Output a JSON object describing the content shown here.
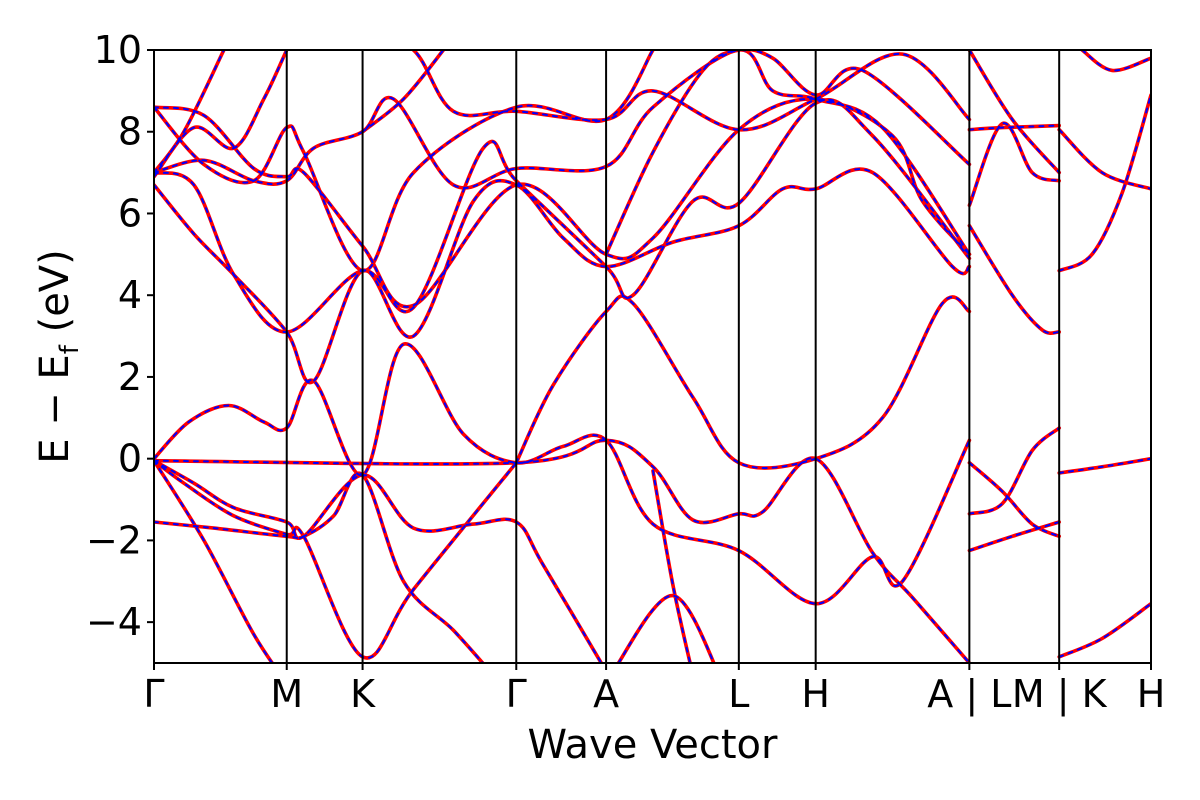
{
  "chart_data": {
    "type": "line",
    "title": "",
    "xlabel": "Wave Vector",
    "ylabel": "E − E_f (eV)",
    "ylabel_main": "E − E",
    "ylabel_sub": "f",
    "ylabel_tail": " (eV)",
    "ylim": [
      -5,
      10
    ],
    "xlim": [
      0,
      9.99
    ],
    "yticks": [
      -4,
      -2,
      0,
      2,
      4,
      6,
      8,
      10
    ],
    "ytick_labels": [
      "−4",
      "−2",
      "0",
      "2",
      "4",
      "6",
      "8",
      "10"
    ],
    "kpoints": [
      {
        "x": 0.0,
        "label": "Γ"
      },
      {
        "x": 1.33,
        "label": "M"
      },
      {
        "x": 2.09,
        "label": "K"
      },
      {
        "x": 3.63,
        "label": "Γ"
      },
      {
        "x": 4.53,
        "label": "A"
      },
      {
        "x": 5.86,
        "label": "L"
      },
      {
        "x": 6.63,
        "label": "H"
      },
      {
        "x": 8.17,
        "label": "A | L"
      },
      {
        "x": 9.07,
        "label": "M | K"
      },
      {
        "x": 9.99,
        "label": "H"
      }
    ],
    "series_styles": [
      {
        "color": "#ff0000",
        "dash": "none",
        "width": 3.6
      },
      {
        "color": "#0000ff",
        "dash": "4 6",
        "width": 2.0
      }
    ],
    "bands": [
      [
        [
          0,
          -0.05
        ],
        [
          0.4,
          -0.6
        ],
        [
          0.8,
          -1.2
        ],
        [
          1.33,
          -1.55
        ],
        [
          1.5,
          -1.9
        ],
        [
          2.09,
          -0.4
        ],
        [
          2.6,
          -1.7
        ],
        [
          3.2,
          -1.6
        ],
        [
          3.63,
          -1.55
        ],
        [
          3.9,
          -2.6
        ],
        [
          4.53,
          -5.2
        ]
      ],
      [
        [
          0,
          -0.05
        ],
        [
          0.5,
          -2.0
        ],
        [
          1.0,
          -4.3
        ],
        [
          1.33,
          -5.5
        ]
      ],
      [
        [
          0,
          -0.05
        ],
        [
          0.3,
          -0.6
        ],
        [
          0.8,
          -1.4
        ],
        [
          1.33,
          -1.85
        ],
        [
          1.5,
          -1.9
        ],
        [
          2.09,
          -4.85
        ],
        [
          2.6,
          -3.2
        ],
        [
          3.63,
          -0.1
        ]
      ],
      [
        [
          0,
          -1.55
        ],
        [
          0.6,
          -1.7
        ],
        [
          1.33,
          -1.9
        ],
        [
          1.5,
          -1.9
        ],
        [
          1.8,
          -1.4
        ],
        [
          2.09,
          -0.4
        ],
        [
          2.5,
          -3.0
        ],
        [
          3.0,
          -4.2
        ],
        [
          3.4,
          -5.3
        ]
      ],
      [
        [
          0,
          0.0
        ],
        [
          0.35,
          0.9
        ],
        [
          0.75,
          1.3
        ],
        [
          1.1,
          0.9
        ],
        [
          1.33,
          0.75
        ],
        [
          1.6,
          1.9
        ],
        [
          2.09,
          -0.4
        ],
        [
          2.5,
          2.8
        ],
        [
          3.1,
          0.6
        ],
        [
          3.63,
          -0.1
        ],
        [
          4.1,
          0.3
        ],
        [
          4.53,
          0.45
        ],
        [
          5.0,
          -1.6
        ],
        [
          5.86,
          -2.25
        ],
        [
          6.63,
          -3.55
        ],
        [
          7.2,
          -2.4
        ],
        [
          7.5,
          -3.0
        ],
        [
          8.17,
          0.45
        ]
      ],
      [
        [
          0,
          -0.05
        ],
        [
          3.63,
          -0.1
        ],
        [
          4.53,
          0.45
        ],
        [
          5.0,
          -0.2
        ],
        [
          5.4,
          -1.5
        ],
        [
          5.86,
          -1.35
        ],
        [
          6.1,
          -1.3
        ],
        [
          6.63,
          0.0
        ],
        [
          7.2,
          -2.3
        ],
        [
          7.6,
          -3.4
        ],
        [
          8.17,
          -5.0
        ]
      ],
      [
        [
          3.63,
          -0.1
        ],
        [
          4.0,
          1.8
        ],
        [
          4.53,
          3.6
        ],
        [
          4.8,
          3.8
        ],
        [
          5.4,
          1.5
        ],
        [
          5.86,
          -0.1
        ],
        [
          6.63,
          0.0
        ],
        [
          7.3,
          1.0
        ],
        [
          7.9,
          3.8
        ],
        [
          8.17,
          3.6
        ]
      ],
      [
        [
          4.6,
          -5.2
        ],
        [
          5.2,
          -3.35
        ],
        [
          5.7,
          -5.5
        ]
      ],
      [
        [
          5.0,
          -0.3
        ],
        [
          5.2,
          -3.1
        ],
        [
          5.4,
          -5.3
        ]
      ],
      [
        [
          0,
          6.7
        ],
        [
          0.4,
          5.5
        ],
        [
          0.8,
          4.5
        ],
        [
          1.33,
          3.1
        ],
        [
          1.6,
          1.9
        ],
        [
          2.09,
          4.6
        ],
        [
          2.6,
          3.0
        ],
        [
          3.2,
          6.3
        ],
        [
          3.63,
          6.7
        ],
        [
          4.1,
          5.4
        ],
        [
          4.53,
          4.7
        ],
        [
          5.2,
          5.3
        ],
        [
          5.86,
          5.7
        ],
        [
          6.3,
          6.6
        ],
        [
          6.63,
          6.6
        ],
        [
          7.2,
          7.0
        ],
        [
          8.0,
          4.7
        ],
        [
          8.17,
          4.7
        ]
      ],
      [
        [
          0,
          7.0
        ],
        [
          0.4,
          6.7
        ],
        [
          0.8,
          4.5
        ],
        [
          1.33,
          3.1
        ],
        [
          2.09,
          4.6
        ],
        [
          2.6,
          3.7
        ],
        [
          3.3,
          7.6
        ],
        [
          3.63,
          6.8
        ],
        [
          4.53,
          4.7
        ],
        [
          4.8,
          4.0
        ],
        [
          5.4,
          6.3
        ],
        [
          5.86,
          6.25
        ],
        [
          6.63,
          8.7
        ],
        [
          7.2,
          7.9
        ],
        [
          8.17,
          4.9
        ]
      ],
      [
        [
          0,
          7.0
        ],
        [
          0.5,
          7.3
        ],
        [
          1.0,
          6.8
        ],
        [
          1.33,
          6.8
        ],
        [
          1.6,
          7.6
        ],
        [
          2.09,
          8.0
        ],
        [
          2.4,
          8.8
        ],
        [
          3.0,
          6.7
        ],
        [
          3.63,
          7.1
        ],
        [
          4.53,
          7.15
        ],
        [
          5.0,
          8.6
        ],
        [
          5.86,
          10.0
        ],
        [
          6.2,
          9.0
        ],
        [
          6.63,
          8.8
        ],
        [
          7.3,
          8.1
        ],
        [
          8.17,
          5.0
        ]
      ],
      [
        [
          0,
          8.6
        ],
        [
          0.5,
          8.4
        ],
        [
          1.0,
          7.1
        ],
        [
          1.33,
          6.9
        ],
        [
          1.5,
          7.0
        ],
        [
          2.09,
          5.2
        ],
        [
          2.6,
          3.75
        ],
        [
          3.63,
          6.7
        ],
        [
          4.53,
          5.0
        ],
        [
          5.0,
          5.4
        ],
        [
          5.86,
          8.05
        ],
        [
          6.63,
          8.8
        ],
        [
          7.4,
          7.9
        ],
        [
          7.7,
          6.3
        ],
        [
          8.17,
          5.0
        ]
      ],
      [
        [
          0,
          8.6
        ],
        [
          0.5,
          7.2
        ],
        [
          1.0,
          6.8
        ],
        [
          1.33,
          8.1
        ],
        [
          1.5,
          7.5
        ],
        [
          2.09,
          4.6
        ],
        [
          2.6,
          7.0
        ],
        [
          3.63,
          8.6
        ],
        [
          4.53,
          8.3
        ],
        [
          5.0,
          10.0
        ]
      ],
      [
        [
          0,
          7.0
        ],
        [
          0.3,
          8.0
        ],
        [
          0.7,
          10.0
        ]
      ],
      [
        [
          0,
          6.9
        ],
        [
          0.4,
          8.1
        ],
        [
          0.8,
          7.6
        ],
        [
          1.1,
          8.8
        ],
        [
          1.33,
          10.0
        ]
      ],
      [
        [
          2.09,
          8.0
        ],
        [
          2.5,
          8.8
        ],
        [
          2.9,
          10.0
        ]
      ],
      [
        [
          2.09,
          10.5
        ],
        [
          2.6,
          10.0
        ],
        [
          3.0,
          8.5
        ],
        [
          3.63,
          8.5
        ],
        [
          4.53,
          8.3
        ],
        [
          5.0,
          9.0
        ],
        [
          5.86,
          8.05
        ],
        [
          6.63,
          8.8
        ],
        [
          7.5,
          9.9
        ],
        [
          8.17,
          8.3
        ]
      ],
      [
        [
          4.53,
          5.0
        ],
        [
          5.0,
          7.5
        ],
        [
          5.5,
          9.5
        ],
        [
          5.86,
          10.0
        ],
        [
          6.2,
          9.8
        ],
        [
          6.63,
          8.9
        ],
        [
          7.1,
          9.5
        ],
        [
          8.17,
          7.2
        ]
      ],
      [
        [
          8.17,
          6.2
        ],
        [
          8.5,
          8.2
        ],
        [
          8.8,
          7.0
        ],
        [
          9.07,
          6.8
        ]
      ],
      [
        [
          8.17,
          8.05
        ],
        [
          8.5,
          8.1
        ],
        [
          9.07,
          8.15
        ]
      ],
      [
        [
          8.17,
          5.7
        ],
        [
          8.6,
          4.0
        ],
        [
          8.9,
          3.15
        ],
        [
          9.07,
          3.1
        ]
      ],
      [
        [
          8.17,
          10.0
        ],
        [
          8.6,
          8.3
        ],
        [
          9.07,
          7.0
        ]
      ],
      [
        [
          8.17,
          -0.1
        ],
        [
          8.5,
          -0.8
        ],
        [
          8.8,
          -1.6
        ],
        [
          9.07,
          -1.9
        ]
      ],
      [
        [
          8.17,
          -1.35
        ],
        [
          8.5,
          -1.1
        ],
        [
          8.8,
          0.2
        ],
        [
          9.07,
          0.75
        ]
      ],
      [
        [
          8.17,
          -2.25
        ],
        [
          8.6,
          -1.9
        ],
        [
          9.07,
          -1.55
        ]
      ],
      [
        [
          9.07,
          4.6
        ],
        [
          9.4,
          5.0
        ],
        [
          9.7,
          6.5
        ],
        [
          9.99,
          8.9
        ]
      ],
      [
        [
          9.07,
          8.05
        ],
        [
          9.5,
          7.0
        ],
        [
          9.99,
          6.6
        ]
      ],
      [
        [
          9.07,
          -0.35
        ],
        [
          9.5,
          -0.2
        ],
        [
          9.99,
          0.0
        ]
      ],
      [
        [
          9.07,
          -4.85
        ],
        [
          9.5,
          -4.4
        ],
        [
          9.99,
          -3.55
        ]
      ],
      [
        [
          9.3,
          10.0
        ],
        [
          9.6,
          9.5
        ],
        [
          9.99,
          9.8
        ]
      ]
    ]
  }
}
